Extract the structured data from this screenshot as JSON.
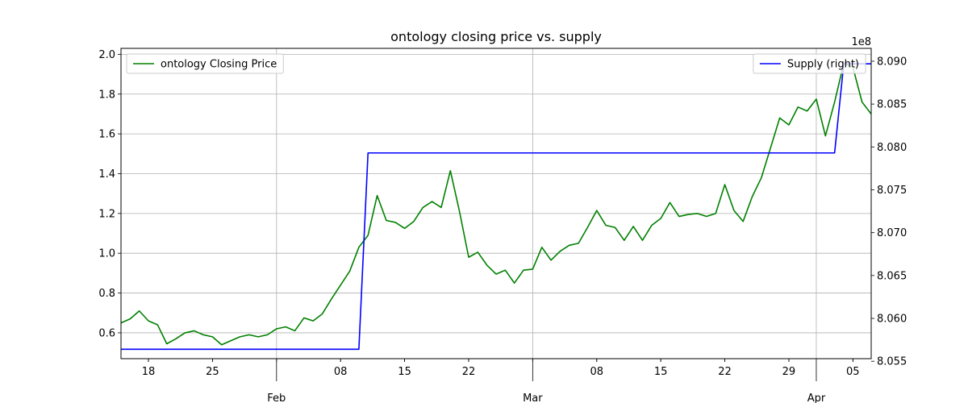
{
  "chart_data": {
    "type": "line",
    "title": "ontology closing price vs. supply",
    "xlabel": "",
    "ylabel": "",
    "grid": true,
    "x_range": [
      "2018-01-15",
      "2018-04-07"
    ],
    "x_minor_ticks": [
      "2018-01-18",
      "2018-01-25",
      "2018-02-08",
      "2018-02-15",
      "2018-02-22",
      "2018-03-08",
      "2018-03-15",
      "2018-03-22",
      "2018-03-29",
      "2018-04-05"
    ],
    "x_minor_labels": [
      "18",
      "25",
      "08",
      "15",
      "22",
      "08",
      "15",
      "22",
      "29",
      "05"
    ],
    "x_major_ticks": [
      "2018-02-01",
      "2018-03-01",
      "2018-04-01"
    ],
    "x_major_labels": [
      "Feb",
      "Mar",
      "Apr"
    ],
    "y_left": {
      "ylim": [
        0.47,
        2.03
      ],
      "ticks": [
        0.6,
        0.8,
        1.0,
        1.2,
        1.4,
        1.6,
        1.8,
        2.0
      ],
      "tick_labels": [
        "0.6",
        "0.8",
        "1.0",
        "1.2",
        "1.4",
        "1.6",
        "1.8",
        "2.0"
      ]
    },
    "y_right": {
      "ylim": [
        8.0553,
        8.0915
      ],
      "ticks": [
        8.055,
        8.06,
        8.065,
        8.07,
        8.075,
        8.08,
        8.085,
        8.09
      ],
      "tick_labels": [
        "8.055",
        "8.060",
        "8.065",
        "8.070",
        "8.075",
        "8.080",
        "8.085",
        "8.090"
      ],
      "offset_text": "1e8"
    },
    "legends": [
      {
        "position": "upper-left",
        "label": "ontology Closing Price",
        "color": "#008000"
      },
      {
        "position": "upper-right",
        "label": "Supply (right)",
        "color": "#0000ff"
      }
    ],
    "series": [
      {
        "name": "ontology Closing Price",
        "axis": "left",
        "color": "#008000",
        "x": [
          "2018-01-15",
          "2018-01-16",
          "2018-01-17",
          "2018-01-18",
          "2018-01-19",
          "2018-01-20",
          "2018-01-21",
          "2018-01-22",
          "2018-01-23",
          "2018-01-24",
          "2018-01-25",
          "2018-01-26",
          "2018-01-27",
          "2018-01-28",
          "2018-01-29",
          "2018-01-30",
          "2018-01-31",
          "2018-02-01",
          "2018-02-02",
          "2018-02-03",
          "2018-02-04",
          "2018-02-05",
          "2018-02-06",
          "2018-02-07",
          "2018-02-08",
          "2018-02-09",
          "2018-02-10",
          "2018-02-11",
          "2018-02-12",
          "2018-02-13",
          "2018-02-14",
          "2018-02-15",
          "2018-02-16",
          "2018-02-17",
          "2018-02-18",
          "2018-02-19",
          "2018-02-20",
          "2018-02-21",
          "2018-02-22",
          "2018-02-23",
          "2018-02-24",
          "2018-02-25",
          "2018-02-26",
          "2018-02-27",
          "2018-02-28",
          "2018-03-01",
          "2018-03-02",
          "2018-03-03",
          "2018-03-04",
          "2018-03-05",
          "2018-03-06",
          "2018-03-07",
          "2018-03-08",
          "2018-03-09",
          "2018-03-10",
          "2018-03-11",
          "2018-03-12",
          "2018-03-13",
          "2018-03-14",
          "2018-03-15",
          "2018-03-16",
          "2018-03-17",
          "2018-03-18",
          "2018-03-19",
          "2018-03-20",
          "2018-03-21",
          "2018-03-22",
          "2018-03-23",
          "2018-03-24",
          "2018-03-25",
          "2018-03-26",
          "2018-03-27",
          "2018-03-28",
          "2018-03-29",
          "2018-03-30",
          "2018-03-31",
          "2018-04-01",
          "2018-04-02",
          "2018-04-03",
          "2018-04-04",
          "2018-04-05",
          "2018-04-06",
          "2018-04-07"
        ],
        "values": [
          0.65,
          0.67,
          0.71,
          0.66,
          0.64,
          0.545,
          0.57,
          0.6,
          0.61,
          0.59,
          0.58,
          0.54,
          0.56,
          0.58,
          0.59,
          0.58,
          0.59,
          0.62,
          0.63,
          0.61,
          0.675,
          0.66,
          0.695,
          0.77,
          0.84,
          0.91,
          1.03,
          1.09,
          1.29,
          1.165,
          1.155,
          1.125,
          1.16,
          1.23,
          1.26,
          1.23,
          1.415,
          1.21,
          0.98,
          1.005,
          0.94,
          0.895,
          0.915,
          0.85,
          0.915,
          0.92,
          1.03,
          0.965,
          1.01,
          1.04,
          1.05,
          1.13,
          1.215,
          1.14,
          1.13,
          1.065,
          1.135,
          1.065,
          1.14,
          1.175,
          1.255,
          1.185,
          1.195,
          1.2,
          1.185,
          1.2,
          1.345,
          1.215,
          1.16,
          1.285,
          1.38,
          1.53,
          1.68,
          1.645,
          1.735,
          1.715,
          1.775,
          1.59,
          1.76,
          1.955,
          1.935,
          1.76,
          1.7
        ]
      },
      {
        "name": "Supply (right)",
        "axis": "right",
        "color": "#0000ff",
        "x": [
          "2018-01-15",
          "2018-02-10",
          "2018-02-11",
          "2018-04-03",
          "2018-04-04",
          "2018-04-07"
        ],
        "values": [
          8.0564,
          8.0564,
          8.0793,
          8.0793,
          8.0897,
          8.0897
        ]
      }
    ]
  }
}
